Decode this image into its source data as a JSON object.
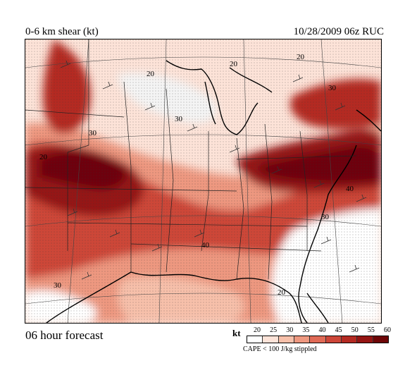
{
  "header": {
    "title": "0-6 km shear (kt)",
    "datetime": "10/28/2009  06z  RUC"
  },
  "footer": {
    "forecast_label": "06 hour forecast"
  },
  "legend": {
    "unit": "kt",
    "ticks": [
      "20",
      "25",
      "30",
      "35",
      "40",
      "45",
      "50",
      "55",
      "60"
    ],
    "colors": [
      "#ffffff",
      "#fde3d8",
      "#f7c0aa",
      "#ee9880",
      "#e06a56",
      "#cd4638",
      "#b42a22",
      "#951513",
      "#6e0607"
    ],
    "note": "CAPE < 100 J/kg stippled"
  },
  "map": {
    "contour_labels": [
      "20",
      "20",
      "20",
      "30",
      "30",
      "30",
      "20",
      "40",
      "40",
      "30",
      "30",
      "20"
    ],
    "colors": {
      "water": "#f4f4f4",
      "land_low": "#ffffff"
    }
  }
}
